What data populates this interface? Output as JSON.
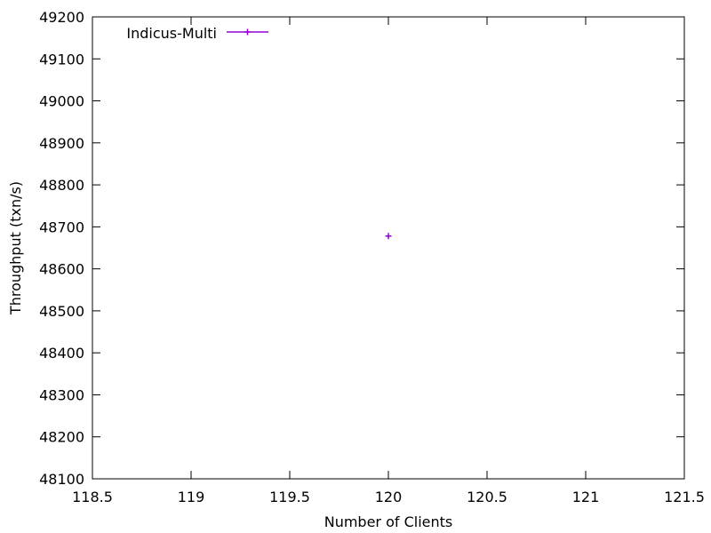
{
  "chart_data": {
    "type": "scatter",
    "xlabel": "Number of Clients",
    "ylabel": "Throughput (txn/s)",
    "xlim": [
      118.5,
      121.5
    ],
    "ylim": [
      48100,
      49200
    ],
    "xticks": [
      "118.5",
      "119",
      "119.5",
      "120",
      "120.5",
      "121",
      "121.5"
    ],
    "yticks": [
      "48100",
      "48200",
      "48300",
      "48400",
      "48500",
      "48600",
      "48700",
      "48800",
      "48900",
      "49000",
      "49100",
      "49200"
    ],
    "grid": false,
    "legend_position": "top-left",
    "series": [
      {
        "name": "Indicus-Multi",
        "color": "#9400d3",
        "marker": "plus",
        "points": [
          {
            "x": 120,
            "y": 48678
          }
        ]
      }
    ]
  }
}
